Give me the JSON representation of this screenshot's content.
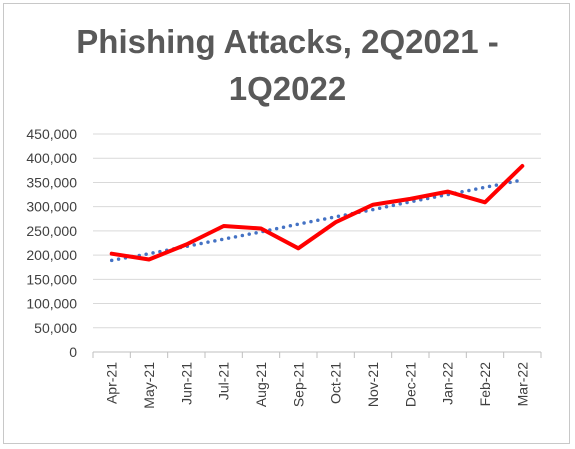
{
  "chart_data": {
    "type": "line",
    "title_line1": "Phishing Attacks, 2Q2021 -",
    "title_line2": "1Q2022",
    "categories": [
      "Apr-21",
      "May-21",
      "Jun-21",
      "Jul-21",
      "Aug-21",
      "Sep-21",
      "Oct-21",
      "Nov-21",
      "Dec-21",
      "Jan-22",
      "Feb-22",
      "Mar-22"
    ],
    "series": [
      {
        "values": [
          203000,
          191000,
          222000,
          260000,
          255000,
          214000,
          268000,
          304000,
          316000,
          331000,
          309000,
          384000
        ],
        "color": "#ff0000",
        "style": "solid"
      },
      {
        "values": [
          189000,
          203000,
          218000,
          233000,
          248000,
          264000,
          279000,
          294000,
          310000,
          325000,
          340000,
          355000
        ],
        "color": "#4472c4",
        "style": "dotted-trendline"
      }
    ],
    "y_ticks": [
      "0",
      "50,000",
      "100,000",
      "150,000",
      "200,000",
      "250,000",
      "300,000",
      "350,000",
      "400,000",
      "450,000"
    ],
    "ylim": [
      0,
      450000
    ],
    "xlabel": "",
    "ylabel": "",
    "grid": true,
    "legend": "none"
  }
}
